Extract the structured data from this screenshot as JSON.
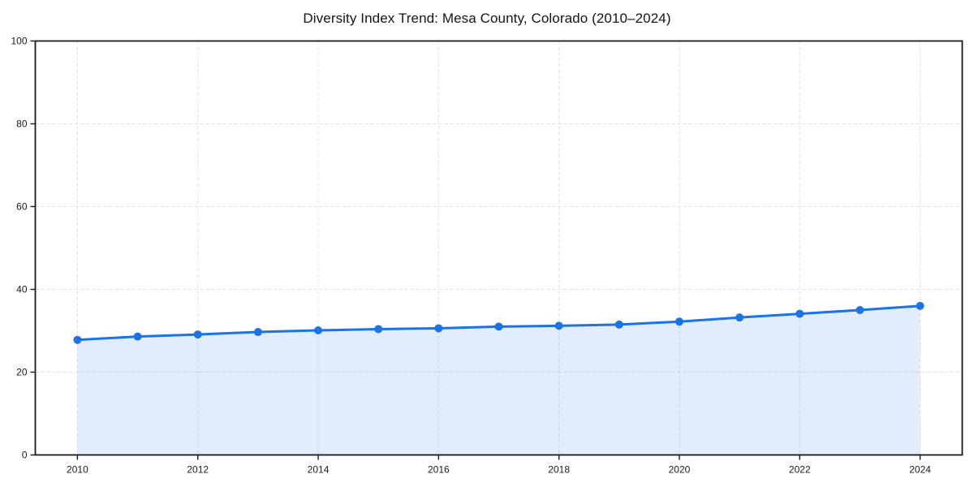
{
  "page": {
    "background_color": "#ffffff"
  },
  "chart_data": {
    "type": "line",
    "title": "Diversity Index Trend: Mesa County, Colorado (2010–2024)",
    "series_name": "Diversity Index",
    "x": [
      2010,
      2011,
      2012,
      2013,
      2014,
      2015,
      2016,
      2017,
      2018,
      2019,
      2020,
      2021,
      2022,
      2023,
      2024
    ],
    "values": [
      27.8,
      28.6,
      29.1,
      29.7,
      30.1,
      30.4,
      30.6,
      31.0,
      31.2,
      31.5,
      32.2,
      33.2,
      34.1,
      35.0,
      36.0
    ],
    "xlabel": "",
    "ylabel": "",
    "xlim": [
      2009.3,
      2024.7
    ],
    "ylim": [
      0,
      100
    ],
    "x_ticks": [
      2010,
      2012,
      2014,
      2016,
      2018,
      2020,
      2022,
      2024
    ],
    "y_ticks": [
      0,
      20,
      40,
      60,
      80,
      100
    ],
    "grid": true,
    "grid_style": "dashed",
    "legend": "none",
    "area_fill_to_zero": true,
    "line_color": "#1a73e8",
    "marker_color": "#1a73e8",
    "fill_color": "#1a73e8",
    "fill_opacity": 0.13,
    "grid_color": "#e2e2e2",
    "spine_color": "#1a1a1a"
  }
}
